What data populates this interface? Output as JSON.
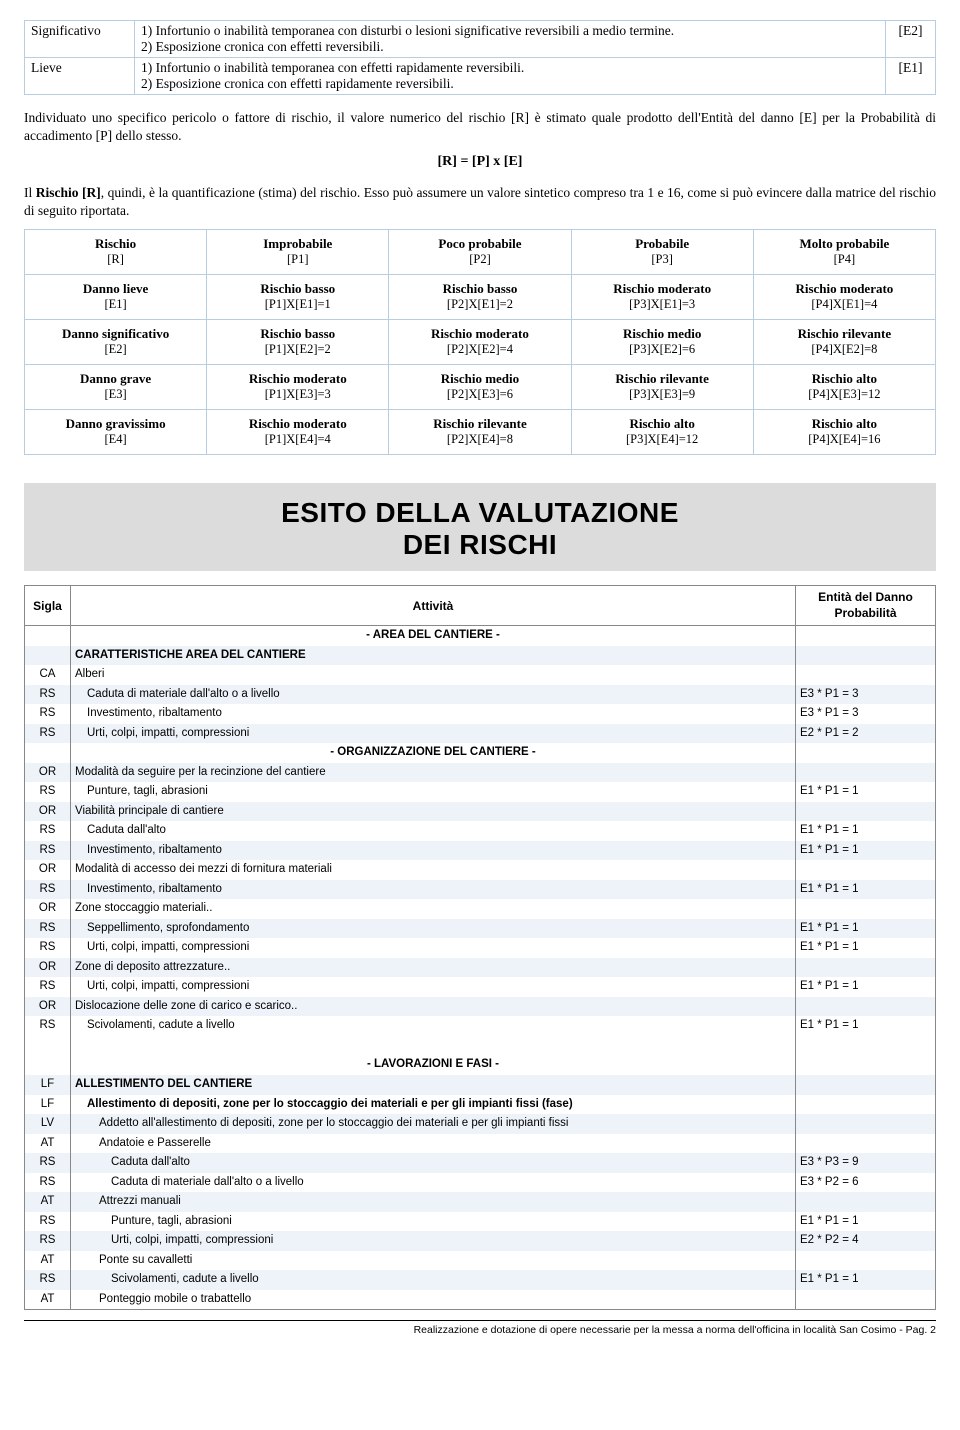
{
  "defTable": {
    "rows": [
      {
        "label": "Significativo",
        "desc": "1) Infortunio o inabilità temporanea con disturbi o lesioni significative reversibili a medio termine.\n2) Esposizione cronica con effetti reversibili.",
        "code": "[E2]"
      },
      {
        "label": "Lieve",
        "desc": "1) Infortunio o inabilità temporanea con effetti rapidamente reversibili.\n2) Esposizione cronica con effetti rapidamente reversibili.",
        "code": "[E1]"
      }
    ]
  },
  "para1": "Individuato uno specifico pericolo o fattore di rischio, il valore numerico del rischio [R] è stimato quale prodotto dell'Entità del danno [E] per la Probabilità di accadimento [P] dello stesso.",
  "formula": "[R] = [P] x [E]",
  "para2_pre": "Il ",
  "para2_bold": "Rischio [R]",
  "para2_post": ", quindi, è la quantificazione (stima) del rischio. Esso può assumere un valore sintetico compreso tra 1 e 16, come si può evincere dalla matrice del rischio di seguito riportata.",
  "matrix": {
    "header": [
      {
        "h": "Rischio",
        "s": "[R]"
      },
      {
        "h": "Improbabile",
        "s": "[P1]"
      },
      {
        "h": "Poco probabile",
        "s": "[P2]"
      },
      {
        "h": "Probabile",
        "s": "[P3]"
      },
      {
        "h": "Molto probabile",
        "s": "[P4]"
      }
    ],
    "rows": [
      [
        {
          "h": "Danno lieve",
          "s": "[E1]"
        },
        {
          "h": "Rischio basso",
          "s": "[P1]X[E1]=1"
        },
        {
          "h": "Rischio basso",
          "s": "[P2]X[E1]=2"
        },
        {
          "h": "Rischio moderato",
          "s": "[P3]X[E1]=3"
        },
        {
          "h": "Rischio moderato",
          "s": "[P4]X[E1]=4"
        }
      ],
      [
        {
          "h": "Danno significativo",
          "s": "[E2]"
        },
        {
          "h": "Rischio basso",
          "s": "[P1]X[E2]=2"
        },
        {
          "h": "Rischio moderato",
          "s": "[P2]X[E2]=4"
        },
        {
          "h": "Rischio medio",
          "s": "[P3]X[E2]=6"
        },
        {
          "h": "Rischio rilevante",
          "s": "[P4]X[E2]=8"
        }
      ],
      [
        {
          "h": "Danno grave",
          "s": "[E3]"
        },
        {
          "h": "Rischio moderato",
          "s": "[P1]X[E3]=3"
        },
        {
          "h": "Rischio medio",
          "s": "[P2]X[E3]=6"
        },
        {
          "h": "Rischio rilevante",
          "s": "[P3]X[E3]=9"
        },
        {
          "h": "Rischio alto",
          "s": "[P4]X[E3]=12"
        }
      ],
      [
        {
          "h": "Danno gravissimo",
          "s": "[E4]"
        },
        {
          "h": "Rischio moderato",
          "s": "[P1]X[E4]=4"
        },
        {
          "h": "Rischio rilevante",
          "s": "[P2]X[E4]=8"
        },
        {
          "h": "Rischio alto",
          "s": "[P3]X[E4]=12"
        },
        {
          "h": "Rischio alto",
          "s": "[P4]X[E4]=16"
        }
      ]
    ]
  },
  "bigHeading": "ESITO DELLA VALUTAZIONE\nDEI RISCHI",
  "esitoHead": {
    "c1": "Sigla",
    "c2": "Attività",
    "c3": "Entità del Danno\nProbabilità"
  },
  "esitoRows": [
    {
      "sigla": "",
      "att": "- AREA DEL CANTIERE -",
      "val": "",
      "cls": "section-label",
      "noStripe": true
    },
    {
      "sigla": "",
      "att": "CARATTERISTICHE AREA DEL CANTIERE",
      "val": "",
      "cls": "bold",
      "stripe": true
    },
    {
      "sigla": "CA",
      "att": "Alberi",
      "val": "",
      "ind": 0
    },
    {
      "sigla": "RS",
      "att": "Caduta di materiale dall'alto o a livello",
      "val": "E3 * P1 = 3",
      "ind": 1,
      "stripe": true
    },
    {
      "sigla": "RS",
      "att": "Investimento, ribaltamento",
      "val": "E3 * P1 = 3",
      "ind": 1
    },
    {
      "sigla": "RS",
      "att": "Urti, colpi, impatti, compressioni",
      "val": "E2 * P1 = 2",
      "ind": 1,
      "stripe": true
    },
    {
      "sigla": "",
      "att": "- ORGANIZZAZIONE DEL CANTIERE -",
      "val": "",
      "cls": "section-label",
      "noStripe": true
    },
    {
      "sigla": "OR",
      "att": "Modalità da seguire per la recinzione del cantiere",
      "val": "",
      "ind": 0,
      "stripe": true
    },
    {
      "sigla": "RS",
      "att": "Punture, tagli, abrasioni",
      "val": "E1 * P1 = 1",
      "ind": 1
    },
    {
      "sigla": "OR",
      "att": "Viabilità principale di cantiere",
      "val": "",
      "ind": 0,
      "stripe": true
    },
    {
      "sigla": "RS",
      "att": "Caduta dall'alto",
      "val": "E1 * P1 = 1",
      "ind": 1
    },
    {
      "sigla": "RS",
      "att": "Investimento, ribaltamento",
      "val": "E1 * P1 = 1",
      "ind": 1,
      "stripe": true
    },
    {
      "sigla": "OR",
      "att": "Modalità di accesso dei mezzi di fornitura materiali",
      "val": "",
      "ind": 0
    },
    {
      "sigla": "RS",
      "att": "Investimento, ribaltamento",
      "val": "E1 * P1 = 1",
      "ind": 1,
      "stripe": true
    },
    {
      "sigla": "OR",
      "att": "Zone stoccaggio materiali..",
      "val": "",
      "ind": 0
    },
    {
      "sigla": "RS",
      "att": "Seppellimento, sprofondamento",
      "val": "E1 * P1 = 1",
      "ind": 1,
      "stripe": true
    },
    {
      "sigla": "RS",
      "att": "Urti, colpi, impatti, compressioni",
      "val": "E1 * P1 = 1",
      "ind": 1
    },
    {
      "sigla": "OR",
      "att": "Zone di deposito attrezzature..",
      "val": "",
      "ind": 0,
      "stripe": true
    },
    {
      "sigla": "RS",
      "att": "Urti, colpi, impatti, compressioni",
      "val": "E1 * P1 = 1",
      "ind": 1
    },
    {
      "sigla": "OR",
      "att": "Dislocazione delle zone di carico e scarico..",
      "val": "",
      "ind": 0,
      "stripe": true
    },
    {
      "sigla": "RS",
      "att": "Scivolamenti, cadute a livello",
      "val": "E1 * P1 = 1",
      "ind": 1
    },
    {
      "sigla": "",
      "att": "",
      "val": "",
      "spacer": true
    },
    {
      "sigla": "",
      "att": "- LAVORAZIONI E FASI -",
      "val": "",
      "cls": "section-label",
      "noStripe": true
    },
    {
      "sigla": "LF",
      "att": "ALLESTIMENTO DEL CANTIERE",
      "val": "",
      "cls": "bold",
      "stripe": true
    },
    {
      "sigla": "LF",
      "att": "Allestimento di depositi, zone per lo stoccaggio dei materiali e per gli impianti fissi (fase)",
      "val": "",
      "cls": "bold",
      "ind": 1
    },
    {
      "sigla": "LV",
      "att": "Addetto all'allestimento di depositi, zone per lo stoccaggio dei materiali e per gli impianti fissi",
      "val": "",
      "ind": 2,
      "stripe": true
    },
    {
      "sigla": "AT",
      "att": "Andatoie e Passerelle",
      "val": "",
      "ind": 2
    },
    {
      "sigla": "RS",
      "att": "Caduta dall'alto",
      "val": "E3 * P3 = 9",
      "ind": 3,
      "stripe": true
    },
    {
      "sigla": "RS",
      "att": "Caduta di materiale dall'alto o a livello",
      "val": "E3 * P2 = 6",
      "ind": 3
    },
    {
      "sigla": "AT",
      "att": "Attrezzi manuali",
      "val": "",
      "ind": 2,
      "stripe": true
    },
    {
      "sigla": "RS",
      "att": "Punture, tagli, abrasioni",
      "val": "E1 * P1 = 1",
      "ind": 3
    },
    {
      "sigla": "RS",
      "att": "Urti, colpi, impatti, compressioni",
      "val": "E2 * P2 = 4",
      "ind": 3,
      "stripe": true
    },
    {
      "sigla": "AT",
      "att": "Ponte su cavalletti",
      "val": "",
      "ind": 2
    },
    {
      "sigla": "RS",
      "att": "Scivolamenti, cadute a livello",
      "val": "E1 * P1 = 1",
      "ind": 3,
      "stripe": true
    },
    {
      "sigla": "AT",
      "att": "Ponteggio mobile o trabattello",
      "val": "",
      "ind": 2
    }
  ],
  "footer": "Realizzazione e dotazione di opere necessarie per la messa a norma dell'officina in località San Cosimo - Pag.  2"
}
